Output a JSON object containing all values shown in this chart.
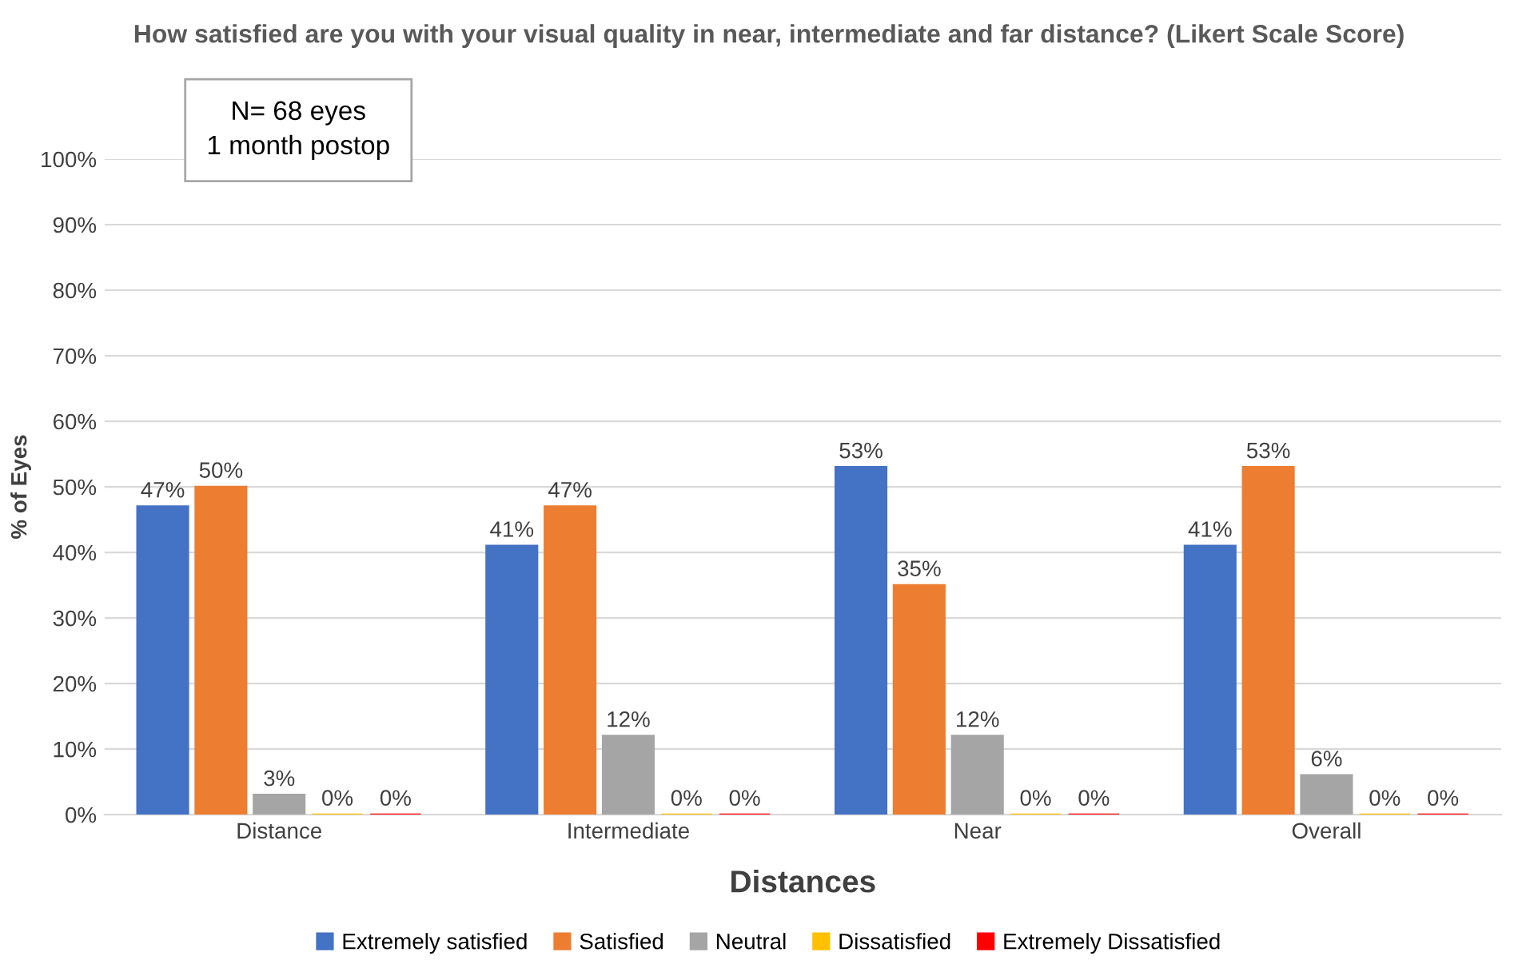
{
  "chart_data": {
    "type": "bar",
    "title": "How satisfied are you with your visual quality in near, intermediate and far distance? (Likert Scale Score)",
    "xlabel": "Distances",
    "ylabel": "% of Eyes",
    "categories": [
      "Distance",
      "Intermediate",
      "Near",
      "Overall"
    ],
    "series": [
      {
        "name": "Extremely satisfied",
        "color": "#4472c4",
        "values": [
          47,
          41,
          53,
          41
        ],
        "value_labels": [
          "47%",
          "41%",
          "53%",
          "41%"
        ]
      },
      {
        "name": "Satisfied",
        "color": "#ed7d31",
        "values": [
          50,
          47,
          35,
          53
        ],
        "value_labels": [
          "50%",
          "47%",
          "35%",
          "53%"
        ]
      },
      {
        "name": "Neutral",
        "color": "#a5a5a5",
        "values": [
          3,
          12,
          12,
          6
        ],
        "value_labels": [
          "3%",
          "12%",
          "12%",
          "6%"
        ]
      },
      {
        "name": "Dissatisfied",
        "color": "#ffc000",
        "values": [
          0,
          0,
          0,
          0
        ],
        "value_labels": [
          "0%",
          "0%",
          "0%",
          "0%"
        ]
      },
      {
        "name": "Extremely Dissatisfied",
        "color": "#ff0000",
        "values": [
          0,
          0,
          0,
          0
        ],
        "value_labels": [
          "0%",
          "0%",
          "0%",
          "0%"
        ]
      }
    ],
    "ylim": [
      0,
      100
    ],
    "yticks": [
      {
        "value": 0,
        "label": "0%"
      },
      {
        "value": 10,
        "label": "10%"
      },
      {
        "value": 20,
        "label": "20%"
      },
      {
        "value": 30,
        "label": "30%"
      },
      {
        "value": 40,
        "label": "40%"
      },
      {
        "value": 50,
        "label": "50%"
      },
      {
        "value": 60,
        "label": "60%"
      },
      {
        "value": 70,
        "label": "70%"
      },
      {
        "value": 80,
        "label": "80%"
      },
      {
        "value": 90,
        "label": "90%"
      },
      {
        "value": 100,
        "label": "100%"
      }
    ],
    "grid": "y",
    "legend": "bottom",
    "annotations": [
      "N= 68 eyes\n1 month postop"
    ]
  }
}
